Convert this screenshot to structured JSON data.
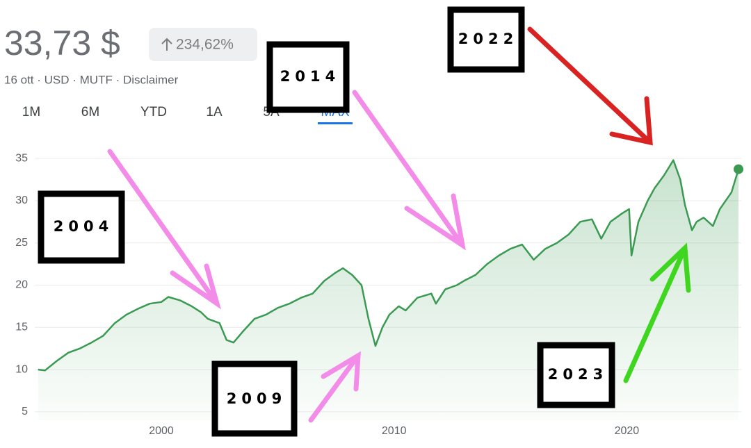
{
  "header": {
    "price": "33,73 $",
    "change": "234,62%",
    "meta": "16 ott · USD · MUTF · Disclaimer"
  },
  "tabs": [
    "1M",
    "6M",
    "YTD",
    "1A",
    "5A",
    "MAX"
  ],
  "selected_tab_index": 5,
  "annotations": [
    "2004",
    "2009",
    "2014",
    "2022",
    "2023"
  ],
  "chart_data": {
    "type": "line",
    "color": "#3a9a52",
    "grid": true,
    "x": [
      1994.7,
      1995.0,
      1995.5,
      1996.0,
      1996.5,
      1997.0,
      1997.5,
      1998.0,
      1998.5,
      1999.0,
      1999.5,
      2000.0,
      2000.3,
      2000.8,
      2001.3,
      2001.7,
      2002.0,
      2002.5,
      2002.8,
      2003.1,
      2003.5,
      2004.0,
      2004.5,
      2005.0,
      2005.5,
      2006.0,
      2006.5,
      2007.0,
      2007.5,
      2007.8,
      2008.2,
      2008.6,
      2008.9,
      2009.2,
      2009.5,
      2009.8,
      2010.2,
      2010.5,
      2011.0,
      2011.6,
      2011.8,
      2012.2,
      2012.7,
      2013.0,
      2013.5,
      2014.0,
      2014.5,
      2015.0,
      2015.5,
      2016.0,
      2016.5,
      2017.0,
      2017.5,
      2018.0,
      2018.5,
      2018.9,
      2019.3,
      2019.8,
      2020.1,
      2020.2,
      2020.5,
      2020.9,
      2021.2,
      2021.6,
      2022.0,
      2022.3,
      2022.5,
      2022.8,
      2023.0,
      2023.3,
      2023.7,
      2024.0,
      2024.5,
      2024.8
    ],
    "values": [
      10.0,
      9.9,
      11.0,
      12.0,
      12.5,
      13.2,
      14.0,
      15.5,
      16.5,
      17.2,
      17.8,
      18.0,
      18.6,
      18.2,
      17.5,
      16.8,
      16.0,
      15.5,
      13.5,
      13.2,
      14.5,
      16.0,
      16.5,
      17.3,
      17.8,
      18.5,
      19.0,
      20.5,
      21.5,
      22.0,
      21.2,
      20.0,
      16.0,
      12.8,
      15.0,
      16.5,
      17.5,
      17.0,
      18.5,
      19.0,
      17.8,
      19.5,
      20.0,
      20.5,
      21.2,
      22.5,
      23.5,
      24.3,
      24.8,
      23.0,
      24.3,
      25.0,
      26.0,
      27.5,
      27.8,
      25.5,
      27.5,
      28.5,
      29.0,
      23.5,
      27.5,
      30.0,
      31.5,
      33.0,
      34.8,
      32.5,
      29.5,
      26.5,
      27.5,
      28.0,
      27.0,
      29.0,
      31.0,
      33.73
    ],
    "xlim": [
      1994.62,
      2024.8
    ],
    "xticks": [
      2000,
      2010,
      2020
    ],
    "ylim": [
      4,
      36
    ],
    "yticks": [
      5,
      10,
      15,
      20,
      25,
      30,
      35
    ]
  }
}
